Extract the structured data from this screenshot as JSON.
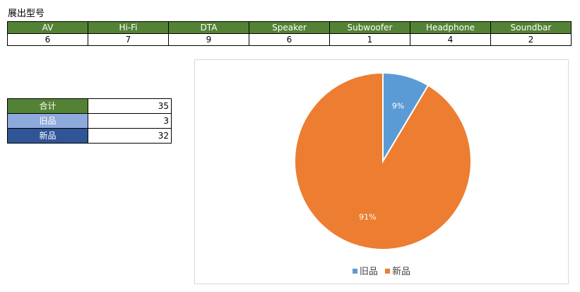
{
  "page": {
    "title": "展出型号"
  },
  "colors": {
    "green": "#548235",
    "light_blue": "#8EA9DB",
    "dark_blue": "#2F5597",
    "slice_old": "#5B9BD5",
    "slice_new": "#ED7D31"
  },
  "models": {
    "headers": [
      "AV",
      "Hi-Fi",
      "DTA",
      "Speaker",
      "Subwoofer",
      "Headphone",
      "Soundbar"
    ],
    "counts": [
      "6",
      "7",
      "9",
      "6",
      "1",
      "4",
      "2"
    ]
  },
  "summary": {
    "rows": [
      {
        "label": "合计",
        "value": "35"
      },
      {
        "label": "旧品",
        "value": "3"
      },
      {
        "label": "新品",
        "value": "32"
      }
    ]
  },
  "chart_data": {
    "type": "pie",
    "categories": [
      "旧品",
      "新品"
    ],
    "values": [
      3,
      32
    ],
    "labels": [
      "9%",
      "91%"
    ],
    "colors": [
      "#5B9BD5",
      "#ED7D31"
    ],
    "legend": "bottom"
  }
}
